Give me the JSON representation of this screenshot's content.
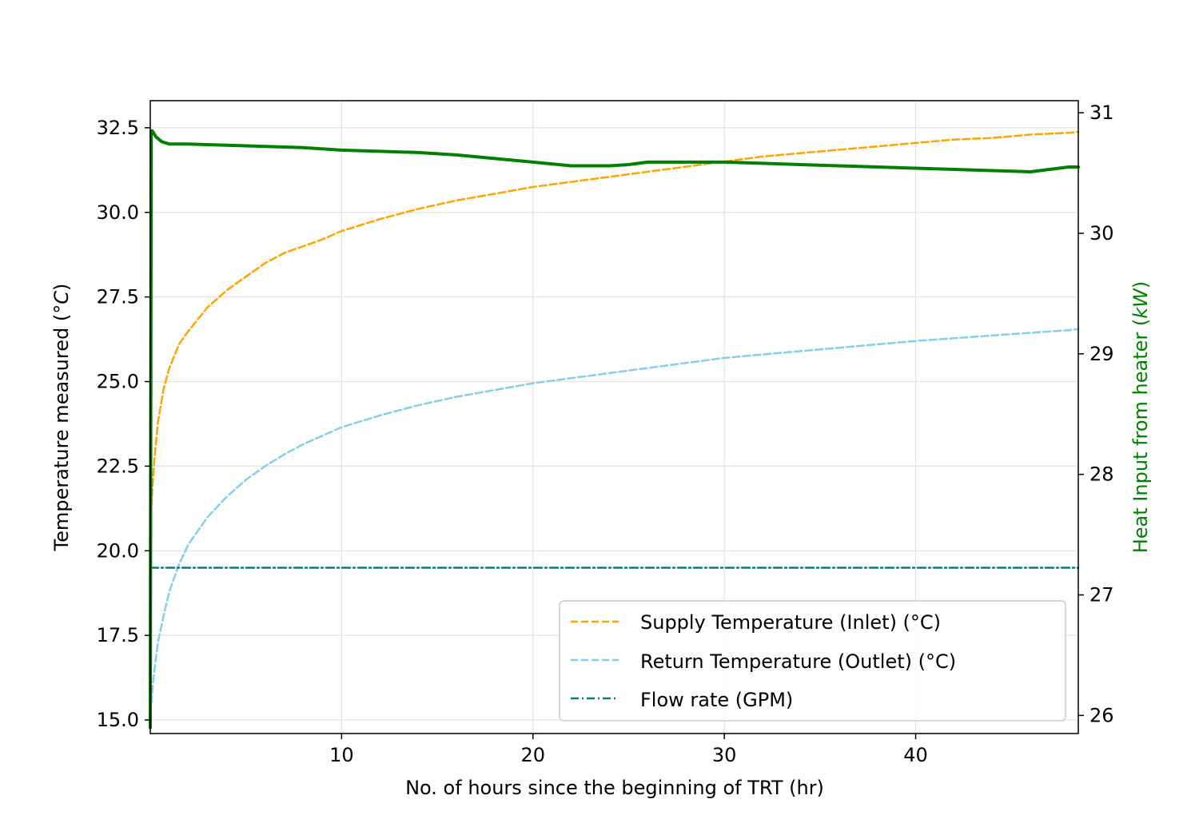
{
  "chart_data": {
    "type": "line",
    "xlabel": "No. of hours since the beginning of TRT (hr)",
    "ylabel": "Temperature measured (°C)",
    "ylabel_parts": [
      "Temperature measured (",
      "°C",
      ")"
    ],
    "y2label": "Heat Input from heater (kW)",
    "y2label_parts": [
      "Heat Input from heater (",
      "kW",
      ")"
    ],
    "xlim": [
      0,
      48.5
    ],
    "ylim": [
      14.6,
      33.3
    ],
    "y2lim": [
      25.85,
      31.1
    ],
    "xticks": [
      10,
      20,
      30,
      40
    ],
    "yticks": [
      15.0,
      17.5,
      20.0,
      22.5,
      25.0,
      27.5,
      30.0,
      32.5
    ],
    "y2ticks": [
      26,
      27,
      28,
      29,
      30,
      31
    ],
    "grid": true,
    "legend_position": "lower-right",
    "colors": {
      "supply": "#FFA500",
      "return": "#87CEEB",
      "flow": "#008080",
      "heat": "#008000",
      "y2label": "#008000"
    },
    "series": [
      {
        "name": "Supply Temperature (Inlet) (°C)",
        "axis": "left",
        "style": "dashed",
        "x": [
          0.05,
          0.2,
          0.4,
          0.7,
          1.0,
          1.5,
          2.0,
          3.0,
          4.0,
          5.0,
          6.0,
          7.0,
          8.0,
          9.0,
          10.0,
          12.0,
          14.0,
          16.0,
          18.0,
          20.0,
          22.0,
          24.0,
          26.0,
          28.0,
          30.0,
          32.0,
          34.0,
          36.0,
          38.0,
          40.0,
          42.0,
          44.0,
          46.0,
          48.0,
          48.5
        ],
        "y": [
          21.3,
          22.6,
          23.8,
          24.8,
          25.4,
          26.1,
          26.5,
          27.2,
          27.7,
          28.1,
          28.5,
          28.8,
          29.0,
          29.2,
          29.45,
          29.8,
          30.1,
          30.35,
          30.55,
          30.75,
          30.9,
          31.05,
          31.2,
          31.35,
          31.5,
          31.65,
          31.75,
          31.85,
          31.95,
          32.05,
          32.15,
          32.2,
          32.3,
          32.35,
          32.38
        ]
      },
      {
        "name": "Return Temperature (Outlet) (°C)",
        "axis": "left",
        "style": "dashed",
        "x": [
          0.05,
          0.2,
          0.4,
          0.7,
          1.0,
          1.5,
          2.0,
          3.0,
          4.0,
          5.0,
          6.0,
          7.0,
          8.0,
          9.0,
          10.0,
          12.0,
          14.0,
          16.0,
          18.0,
          20.0,
          22.0,
          24.0,
          26.0,
          28.0,
          30.0,
          32.0,
          34.0,
          36.0,
          38.0,
          40.0,
          42.0,
          44.0,
          46.0,
          48.0,
          48.5
        ],
        "y": [
          15.5,
          16.4,
          17.3,
          18.1,
          18.8,
          19.6,
          20.2,
          21.0,
          21.6,
          22.1,
          22.5,
          22.85,
          23.15,
          23.4,
          23.65,
          24.0,
          24.3,
          24.55,
          24.75,
          24.95,
          25.1,
          25.25,
          25.4,
          25.55,
          25.7,
          25.8,
          25.9,
          26.0,
          26.1,
          26.2,
          26.28,
          26.36,
          26.44,
          26.52,
          26.55
        ]
      },
      {
        "name": "Flow rate (GPM)",
        "axis": "left",
        "style": "dashdot",
        "x": [
          0.0,
          48.5
        ],
        "y": [
          19.5,
          19.5
        ]
      },
      {
        "axis": "right",
        "style": "solid",
        "x": [
          0.0,
          0.05,
          0.1,
          0.3,
          0.6,
          1.0,
          2.0,
          4.0,
          6.0,
          8.0,
          10.0,
          12.0,
          14.0,
          16.0,
          18.0,
          20.0,
          22.0,
          24.0,
          25.0,
          26.0,
          28.0,
          30.0,
          32.0,
          34.0,
          36.0,
          38.0,
          40.0,
          42.0,
          44.0,
          46.0,
          47.0,
          48.0,
          48.5
        ],
        "y": [
          25.9,
          30.85,
          30.85,
          30.8,
          30.76,
          30.74,
          30.74,
          30.73,
          30.72,
          30.71,
          30.69,
          30.68,
          30.67,
          30.65,
          30.62,
          30.59,
          30.56,
          30.56,
          30.57,
          30.59,
          30.59,
          30.59,
          30.58,
          30.57,
          30.56,
          30.55,
          30.54,
          30.53,
          30.52,
          30.51,
          30.53,
          30.55,
          30.55
        ]
      }
    ]
  }
}
